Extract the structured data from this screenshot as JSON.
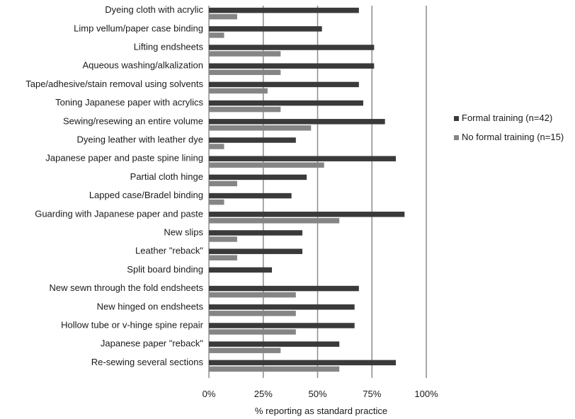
{
  "chart_data": {
    "type": "bar",
    "orientation": "horizontal",
    "categories": [
      "Dyeing cloth with acrylic",
      "Limp vellum/paper case binding",
      "Lifting endsheets",
      "Aqueous washing/alkalization",
      "Tape/adhesive/stain removal using solvents",
      "Toning Japanese paper with acrylics",
      "Sewing/resewing an entire volume",
      "Dyeing leather with leather dye",
      "Japanese paper and paste spine lining",
      "Partial cloth hinge",
      "Lapped case/Bradel binding",
      "Guarding with Japanese paper and paste",
      "New slips",
      "Leather \"reback\"",
      "Split board binding",
      "New sewn through the fold endsheets",
      "New hinged on endsheets",
      "Hollow tube or v-hinge spine repair",
      "Japanese paper \"reback\"",
      "Re-sewing several sections"
    ],
    "series": [
      {
        "name": "Formal training (n=42)",
        "color": "#3a3a3a",
        "values": [
          69,
          52,
          76,
          76,
          69,
          71,
          81,
          40,
          86,
          45,
          38,
          90,
          43,
          43,
          29,
          69,
          67,
          67,
          60,
          86
        ]
      },
      {
        "name": "No formal training (n=15)",
        "color": "#858585",
        "values": [
          13,
          7,
          33,
          33,
          27,
          33,
          47,
          7,
          53,
          13,
          7,
          60,
          13,
          13,
          0,
          40,
          40,
          40,
          33,
          60
        ]
      }
    ],
    "xticks": [
      "0%",
      "25%",
      "50%",
      "75%",
      "100%"
    ],
    "xlim": [
      0,
      100
    ],
    "xlabel": "% reporting as standard practice",
    "ylabel": "",
    "title": "",
    "grid": "vertical",
    "legend_position": "right"
  }
}
